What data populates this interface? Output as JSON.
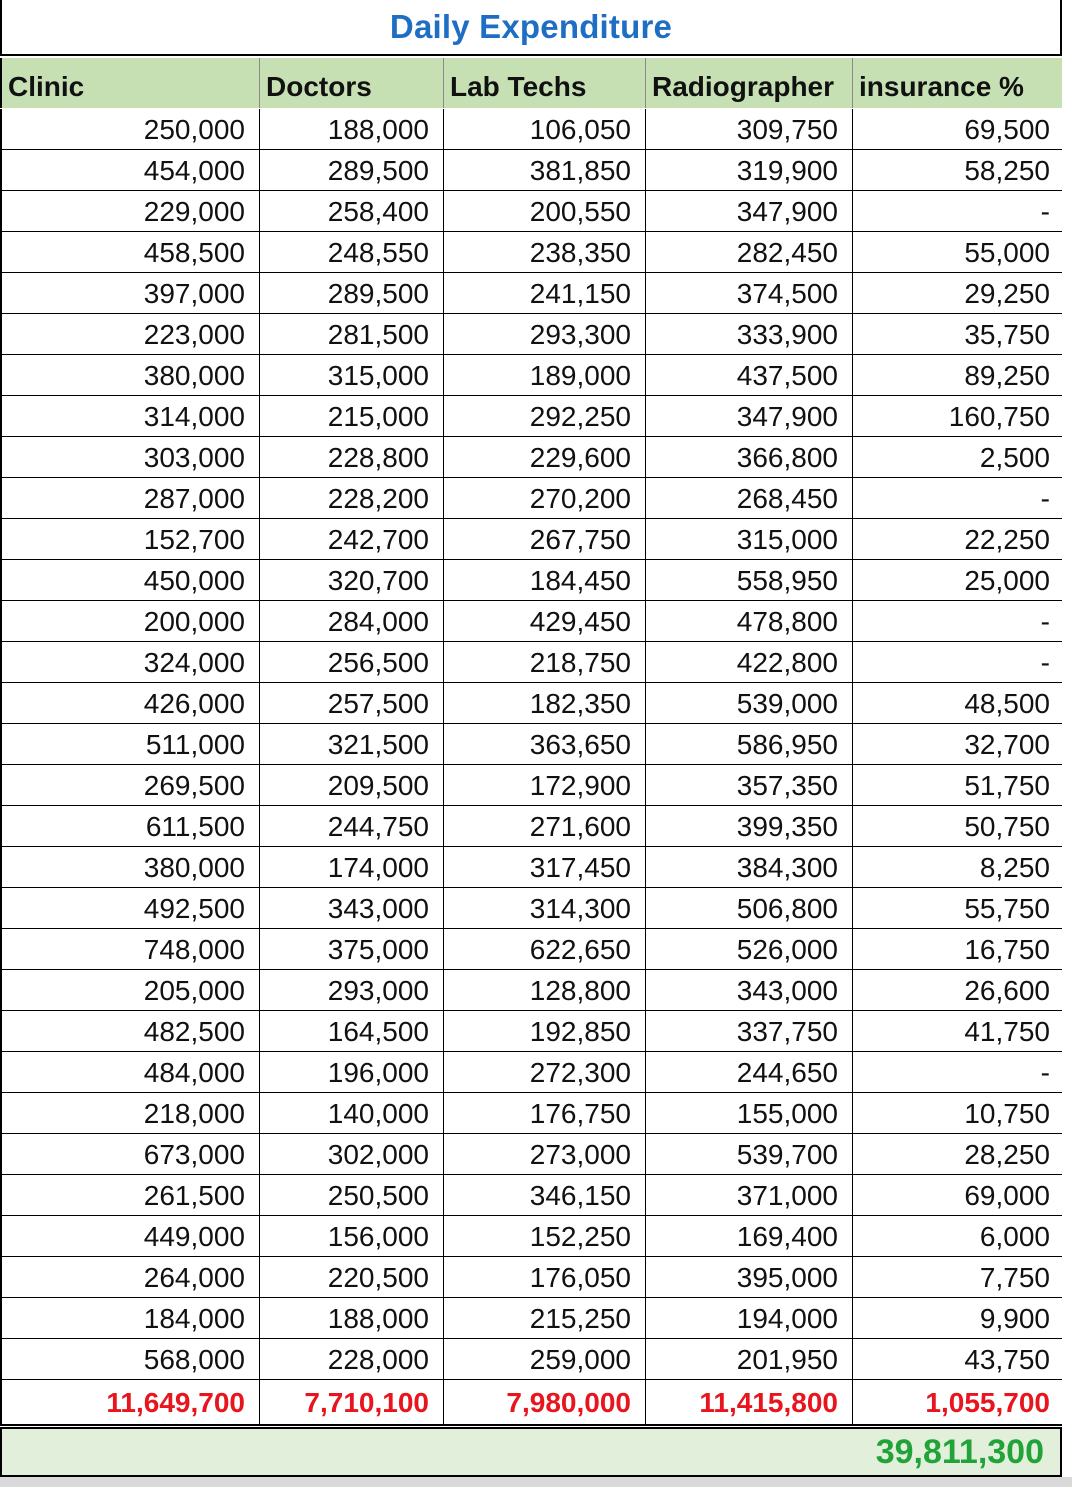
{
  "title": "Daily Expenditure",
  "columns": [
    "Clinic",
    "Doctors",
    "Lab Techs",
    "Radiographer",
    "insurance %"
  ],
  "rows": [
    [
      "250,000",
      "188,000",
      "106,050",
      "309,750",
      "69,500"
    ],
    [
      "454,000",
      "289,500",
      "381,850",
      "319,900",
      "58,250"
    ],
    [
      "229,000",
      "258,400",
      "200,550",
      "347,900",
      "-"
    ],
    [
      "458,500",
      "248,550",
      "238,350",
      "282,450",
      "55,000"
    ],
    [
      "397,000",
      "289,500",
      "241,150",
      "374,500",
      "29,250"
    ],
    [
      "223,000",
      "281,500",
      "293,300",
      "333,900",
      "35,750"
    ],
    [
      "380,000",
      "315,000",
      "189,000",
      "437,500",
      "89,250"
    ],
    [
      "314,000",
      "215,000",
      "292,250",
      "347,900",
      "160,750"
    ],
    [
      "303,000",
      "228,800",
      "229,600",
      "366,800",
      "2,500"
    ],
    [
      "287,000",
      "228,200",
      "270,200",
      "268,450",
      "-"
    ],
    [
      "152,700",
      "242,700",
      "267,750",
      "315,000",
      "22,250"
    ],
    [
      "450,000",
      "320,700",
      "184,450",
      "558,950",
      "25,000"
    ],
    [
      "200,000",
      "284,000",
      "429,450",
      "478,800",
      "-"
    ],
    [
      "324,000",
      "256,500",
      "218,750",
      "422,800",
      "-"
    ],
    [
      "426,000",
      "257,500",
      "182,350",
      "539,000",
      "48,500"
    ],
    [
      "511,000",
      "321,500",
      "363,650",
      "586,950",
      "32,700"
    ],
    [
      "269,500",
      "209,500",
      "172,900",
      "357,350",
      "51,750"
    ],
    [
      "611,500",
      "244,750",
      "271,600",
      "399,350",
      "50,750"
    ],
    [
      "380,000",
      "174,000",
      "317,450",
      "384,300",
      "8,250"
    ],
    [
      "492,500",
      "343,000",
      "314,300",
      "506,800",
      "55,750"
    ],
    [
      "748,000",
      "375,000",
      "622,650",
      "526,000",
      "16,750"
    ],
    [
      "205,000",
      "293,000",
      "128,800",
      "343,000",
      "26,600"
    ],
    [
      "482,500",
      "164,500",
      "192,850",
      "337,750",
      "41,750"
    ],
    [
      "484,000",
      "196,000",
      "272,300",
      "244,650",
      "-"
    ],
    [
      "218,000",
      "140,000",
      "176,750",
      "155,000",
      "10,750"
    ],
    [
      "673,000",
      "302,000",
      "273,000",
      "539,700",
      "28,250"
    ],
    [
      "261,500",
      "250,500",
      "346,150",
      "371,000",
      "69,000"
    ],
    [
      "449,000",
      "156,000",
      "152,250",
      "169,400",
      "6,000"
    ],
    [
      "264,000",
      "220,500",
      "176,050",
      "395,000",
      "7,750"
    ],
    [
      "184,000",
      "188,000",
      "215,250",
      "194,000",
      "9,900"
    ],
    [
      "568,000",
      "228,000",
      "259,000",
      "201,950",
      "43,750"
    ]
  ],
  "totals": [
    "11,649,700",
    "7,710,100",
    "7,980,000",
    "11,415,800",
    "1,055,700"
  ],
  "grand_total": "39,811,300",
  "colors": {
    "title": "#1e6fc3",
    "header_bg": "#c6e0b4",
    "totals_text": "#e8141e",
    "grand_bg": "#e2efda",
    "grand_text": "#22a33a"
  }
}
